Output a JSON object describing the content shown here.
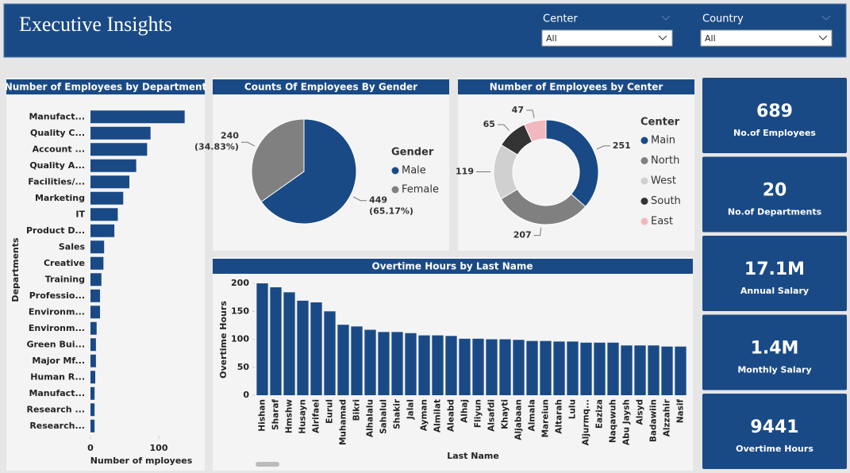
{
  "header": {
    "title": "Executive Insights"
  },
  "filters": [
    {
      "label": "Center",
      "value": "All"
    },
    {
      "label": "Country",
      "value": "All"
    }
  ],
  "cards": [
    {
      "value": 689,
      "label": "No.of Employees"
    },
    {
      "value": 20,
      "label": "No.of Departments"
    },
    {
      "value": "17.1M",
      "label": "Annual Salary"
    },
    {
      "value": "1.4M",
      "label": "Monthly Salary"
    },
    {
      "value": 9441,
      "label": "Overtime Hours"
    }
  ],
  "chart_data": [
    {
      "type": "hbar",
      "title": "Number of Employees by Department",
      "categories": [
        "Manufact...",
        "Quality C...",
        "Account ...",
        "Quality A...",
        "Facilities/...",
        "Marketing",
        "IT",
        "Product D...",
        "Sales",
        "Creative",
        "Training",
        "Professio...",
        "Environm...",
        "Environm...",
        "Green Bui...",
        "Major Mf...",
        "Human R...",
        "Manufact...",
        "Research ...",
        "Research..."
      ],
      "values": [
        138,
        88,
        83,
        67,
        57,
        48,
        40,
        35,
        20,
        19,
        16,
        14,
        14,
        9,
        8,
        8,
        7,
        6,
        6,
        6
      ],
      "color": "#1a4a86",
      "xlim": [
        0,
        150
      ],
      "xticks": [
        0,
        100
      ],
      "x_label": "Number of mployees",
      "y_label": "Departments"
    },
    {
      "type": "pie",
      "title": "Counts Of Employees By Gender",
      "legend_title": "Gender",
      "categories": [
        "Male",
        "Female"
      ],
      "values": [
        449,
        240
      ],
      "percent_labels": [
        "(65.17%)",
        "(34.83%)"
      ],
      "colors": [
        "#1a4a86",
        "#808080"
      ],
      "legend": "right"
    },
    {
      "type": "donut",
      "title": "Number of Employees by Center",
      "legend_title": "Center",
      "categories": [
        "Main",
        "North",
        "West",
        "South",
        "East"
      ],
      "values": [
        251,
        207,
        119,
        65,
        47
      ],
      "colors": [
        "#1a4a86",
        "#808080",
        "#d0d0d0",
        "#333333",
        "#f2b8bf"
      ],
      "legend": "right"
    },
    {
      "type": "bar",
      "title": "Overtime Hours by Last Name",
      "categories": [
        "Hishan",
        "Sharaf",
        "Hmshw",
        "Husayn",
        "Alrifaei",
        "Eurul",
        "Muhamad",
        "Bikri",
        "Alhalalu",
        "Sahalul",
        "Shakir",
        "Jalal",
        "Ayman",
        "Almilat",
        "Aleabd",
        "Alhaj",
        "Fliyun",
        "Alsafdi",
        "Khayti",
        "Aljabaan",
        "Almala",
        "Mareiun",
        "Altarah",
        "Lulu",
        "Aljurmq...",
        "Eaziza",
        "Naqawuh",
        "Abu Jaysh",
        "Alsyd",
        "Badawiin",
        "Alzzahir",
        "Nasif"
      ],
      "values": [
        200,
        193,
        184,
        169,
        166,
        150,
        126,
        123,
        117,
        113,
        113,
        111,
        107,
        107,
        106,
        101,
        101,
        100,
        100,
        99,
        97,
        97,
        96,
        96,
        94,
        94,
        94,
        89,
        89,
        89,
        87,
        87
      ],
      "color": "#1a4a86",
      "ylim": [
        0,
        210
      ],
      "yticks": [
        0,
        50,
        100,
        150,
        200
      ],
      "x_label": "Last Name",
      "y_label": "Overtime Hours"
    }
  ]
}
